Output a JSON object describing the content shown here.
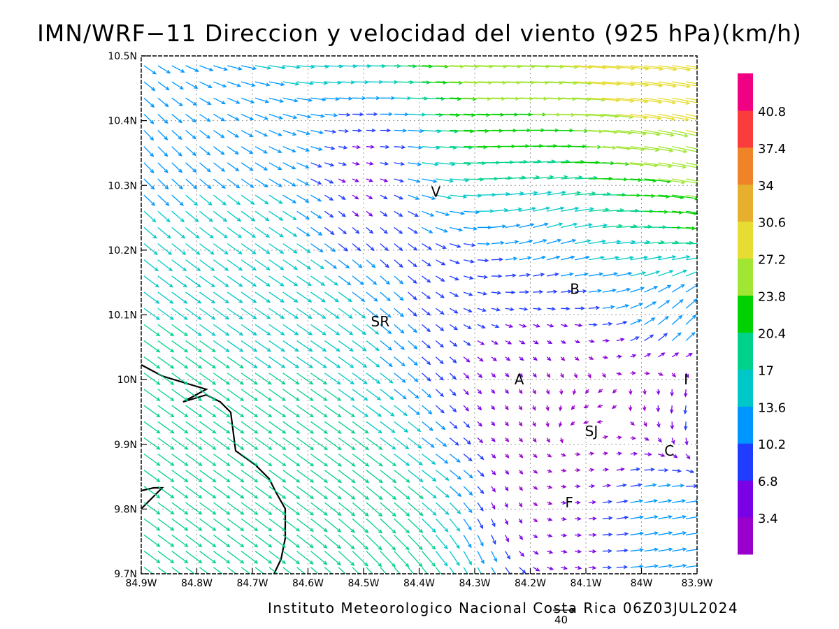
{
  "title": "IMN/WRF−11 Direccion y velocidad del viento (925 hPa)(km/h)",
  "footer": "Instituto Meteorologico Nacional Costa Rica  06Z03JUL2024",
  "reference_vector": {
    "value": "40",
    "speed": 40
  },
  "map": {
    "lon_range": [
      -84.9,
      -83.9
    ],
    "lat_range": [
      9.7,
      10.5
    ],
    "x_ticks": [
      "84.9W",
      "84.8W",
      "84.7W",
      "84.6W",
      "84.5W",
      "84.4W",
      "84.3W",
      "84.2W",
      "84.1W",
      "84W",
      "83.9W"
    ],
    "y_ticks": [
      "9.7N",
      "9.8N",
      "9.9N",
      "10N",
      "10.1N",
      "10.2N",
      "10.3N",
      "10.4N",
      "10.5N"
    ],
    "grid": "dotted",
    "coastline_color": "#000000",
    "places": [
      {
        "label": "V",
        "lon": -84.37,
        "lat": 10.29
      },
      {
        "label": "B",
        "lon": -84.12,
        "lat": 10.14
      },
      {
        "label": "SR",
        "lon": -84.47,
        "lat": 10.09
      },
      {
        "label": "A",
        "lon": -84.22,
        "lat": 10.0
      },
      {
        "label": "I",
        "lon": -83.92,
        "lat": 10.0
      },
      {
        "label": "SJ",
        "lon": -84.09,
        "lat": 9.92
      },
      {
        "label": "C",
        "lon": -83.95,
        "lat": 9.89
      },
      {
        "label": "F",
        "lon": -84.13,
        "lat": 9.81
      }
    ]
  },
  "colorbar": {
    "labels": [
      "3.4",
      "6.8",
      "10.2",
      "13.6",
      "17",
      "20.4",
      "23.8",
      "27.2",
      "30.6",
      "34",
      "37.4",
      "40.8"
    ],
    "colors": [
      "#9900cc",
      "#7a00e6",
      "#1f3cff",
      "#0096ff",
      "#00c8c8",
      "#00d28c",
      "#00d200",
      "#a0e632",
      "#e6dc32",
      "#e6af2d",
      "#f08228",
      "#fa3c3c",
      "#f00082"
    ]
  }
}
